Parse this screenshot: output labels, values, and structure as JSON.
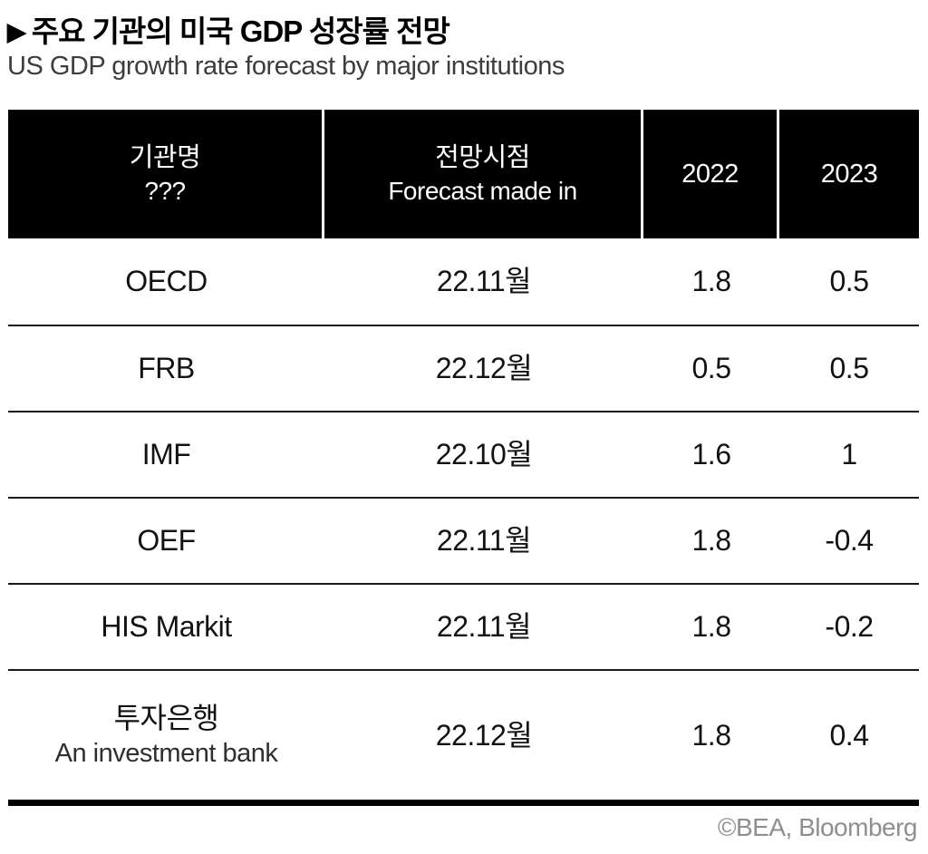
{
  "page": {
    "title_marker": "▶",
    "title": "주요 기관의 미국 GDP 성장률 전망",
    "subtitle": "US GDP growth rate forecast by major institutions",
    "source": "©BEA, Bloomberg"
  },
  "chart_data": {
    "type": "table",
    "title": "주요 기관의 미국 GDP 성장률 전망",
    "subtitle": "US GDP growth rate forecast by major institutions",
    "source": "©BEA, Bloomberg",
    "columns": [
      {
        "label": "기관명",
        "sublabel": "???"
      },
      {
        "label": "전망시점",
        "sublabel": "Forecast made in"
      },
      {
        "label": "2022",
        "sublabel": ""
      },
      {
        "label": "2023",
        "sublabel": ""
      }
    ],
    "rows": [
      {
        "institution": "OECD",
        "institution_sub": "",
        "forecast_made_in": "22.11월",
        "gdp_2022": 1.8,
        "gdp_2023": 0.5
      },
      {
        "institution": "FRB",
        "institution_sub": "",
        "forecast_made_in": "22.12월",
        "gdp_2022": 0.5,
        "gdp_2023": 0.5
      },
      {
        "institution": "IMF",
        "institution_sub": "",
        "forecast_made_in": "22.10월",
        "gdp_2022": 1.6,
        "gdp_2023": 1
      },
      {
        "institution": "OEF",
        "institution_sub": "",
        "forecast_made_in": "22.11월",
        "gdp_2022": 1.8,
        "gdp_2023": -0.4
      },
      {
        "institution": "HIS Markit",
        "institution_sub": "",
        "forecast_made_in": "22.11월",
        "gdp_2022": 1.8,
        "gdp_2023": -0.2
      },
      {
        "institution": "투자은행",
        "institution_sub": "An investment bank",
        "forecast_made_in": "22.12월",
        "gdp_2022": 1.8,
        "gdp_2023": 0.4
      }
    ]
  },
  "colors": {
    "header_bg": "#000000",
    "header_text": "#ffffff",
    "title_text": "#000000",
    "subtitle_text": "#3d3d3d",
    "body_text": "#121212",
    "row_divider": "#1a1a1a",
    "source_text": "#8f8f8f"
  }
}
